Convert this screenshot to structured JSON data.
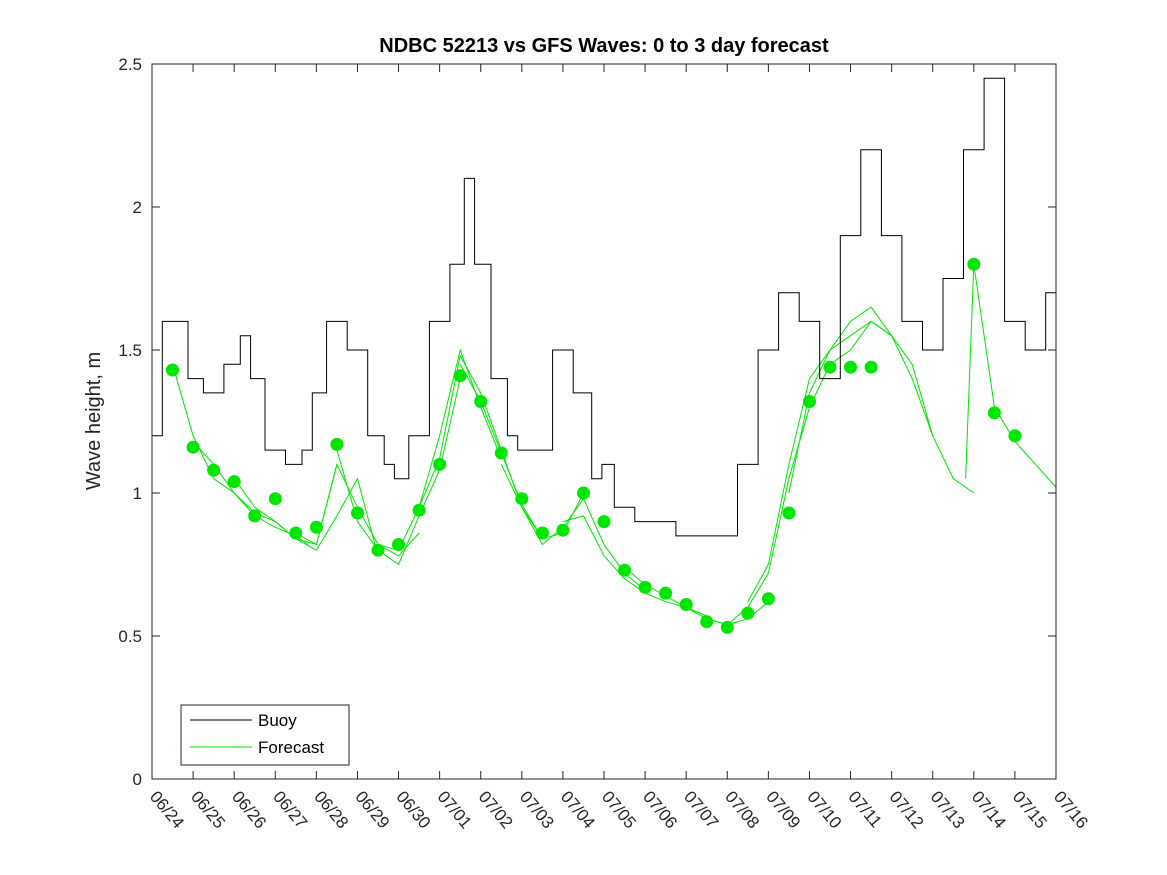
{
  "chart_data": {
    "type": "line",
    "title": "NDBC 52213 vs GFS Waves: 0 to 3 day forecast",
    "xlabel": "",
    "ylabel": "Wave height, m",
    "x_ticks": [
      "06/24",
      "06/25",
      "06/26",
      "06/27",
      "06/28",
      "06/29",
      "06/30",
      "07/01",
      "07/02",
      "07/03",
      "07/04",
      "07/05",
      "07/06",
      "07/07",
      "07/08",
      "07/09",
      "07/10",
      "07/11",
      "07/12",
      "07/13",
      "07/14",
      "07/15",
      "07/16"
    ],
    "y_ticks": [
      "0",
      "0.5",
      "1",
      "1.5",
      "2",
      "2.5"
    ],
    "xlim": [
      "06/24",
      "07/16"
    ],
    "ylim": [
      0,
      2.5
    ],
    "grid": false,
    "legend": {
      "position": "bottom-left",
      "entries": [
        "Buoy",
        "Forecast"
      ]
    },
    "colors": {
      "buoy": "#000000",
      "forecast": "#00e600"
    },
    "buoy": {
      "name": "Buoy",
      "color": "#000000",
      "t": [
        0,
        0.5,
        0.75,
        1,
        1.5,
        2,
        2.3,
        2.5,
        3,
        3.5,
        3.8,
        4,
        4.5,
        5,
        5.5,
        5.8,
        6,
        6.5,
        7,
        7.5,
        7.7,
        8,
        8.5,
        8.8,
        9,
        9.5,
        10,
        10.5,
        10.9,
        11,
        11.5,
        12,
        12.5,
        13,
        13.5,
        14,
        14.5,
        15,
        15.5,
        16,
        16.5,
        17,
        17.5,
        18,
        18.5,
        19,
        19.5,
        20,
        20.5,
        21,
        21.5,
        22
      ],
      "y": [
        1.2,
        1.6,
        1.6,
        1.4,
        1.35,
        1.45,
        1.55,
        1.4,
        1.15,
        1.1,
        1.15,
        1.35,
        1.6,
        1.5,
        1.2,
        1.1,
        1.05,
        1.2,
        1.6,
        1.8,
        2.1,
        1.8,
        1.4,
        1.2,
        1.15,
        1.15,
        1.5,
        1.35,
        1.05,
        1.1,
        0.95,
        0.9,
        0.9,
        0.85,
        0.85,
        0.85,
        1.1,
        1.5,
        1.7,
        1.6,
        1.4,
        1.9,
        2.2,
        1.9,
        1.6,
        1.5,
        1.75,
        2.2,
        2.45,
        1.6,
        1.5,
        1.7
      ]
    },
    "forecast_dots": {
      "name": "Forecast",
      "color": "#00e600",
      "t": [
        0.5,
        1,
        1.5,
        2,
        2.5,
        3,
        3.5,
        4,
        4.5,
        5,
        5.5,
        6,
        6.5,
        7,
        7.5,
        8,
        8.5,
        9,
        9.5,
        10,
        10.5,
        11,
        11.5,
        12,
        12.5,
        13,
        13.5,
        14,
        14.5,
        15,
        15.5,
        16,
        16.5,
        17,
        17.5,
        20,
        20.5,
        21
      ],
      "y": [
        1.43,
        1.16,
        1.08,
        1.04,
        0.92,
        0.98,
        0.86,
        0.88,
        1.17,
        0.93,
        0.8,
        0.82,
        0.94,
        1.1,
        1.41,
        1.32,
        1.14,
        0.98,
        0.86,
        0.87,
        1.0,
        0.9,
        0.73,
        0.67,
        0.65,
        0.61,
        0.55,
        0.53,
        0.58,
        0.63,
        0.93,
        1.32,
        1.44,
        1.44,
        1.44,
        1.8,
        1.28,
        1.2
      ]
    },
    "forecast_runs": [
      {
        "t": [
          0.5,
          1,
          1.5,
          2,
          2.5,
          3,
          3.5,
          3.8
        ],
        "y": [
          1.45,
          1.2,
          1.05,
          1.0,
          0.92,
          0.88,
          0.85,
          0.82
        ]
      },
      {
        "t": [
          1,
          1.5,
          2,
          2.5,
          3,
          3.5,
          4,
          4.5
        ],
        "y": [
          1.18,
          1.1,
          1.0,
          0.93,
          0.9,
          0.84,
          0.82,
          1.1
        ]
      },
      {
        "t": [
          2,
          2.5,
          3,
          3.5,
          4,
          4.5,
          5,
          5.5
        ],
        "y": [
          1.05,
          0.95,
          0.9,
          0.84,
          0.8,
          0.92,
          1.05,
          0.78
        ]
      },
      {
        "t": [
          3.5,
          4,
          4.5,
          5,
          5.5,
          6,
          6.5
        ],
        "y": [
          0.86,
          0.82,
          1.1,
          0.95,
          0.82,
          0.78,
          0.86
        ]
      },
      {
        "t": [
          4.5,
          5,
          5.5,
          6,
          6.5,
          7,
          7.5
        ],
        "y": [
          1.15,
          0.9,
          0.8,
          0.75,
          0.92,
          1.08,
          1.4
        ]
      },
      {
        "t": [
          5.5,
          6,
          6.5,
          7,
          7.5,
          8,
          8.5
        ],
        "y": [
          0.82,
          0.8,
          0.95,
          1.2,
          1.5,
          1.3,
          1.12
        ]
      },
      {
        "t": [
          6.5,
          7,
          7.5,
          8,
          8.5,
          9,
          9.5
        ],
        "y": [
          0.95,
          1.12,
          1.48,
          1.35,
          1.15,
          0.95,
          0.84
        ]
      },
      {
        "t": [
          7.5,
          8,
          8.5,
          9,
          9.5,
          10,
          10.5
        ],
        "y": [
          1.45,
          1.32,
          1.14,
          0.96,
          0.84,
          0.86,
          1.0
        ]
      },
      {
        "t": [
          8.5,
          9,
          9.5,
          10,
          10.5,
          11,
          11.5,
          12
        ],
        "y": [
          1.1,
          0.95,
          0.82,
          0.88,
          0.98,
          0.82,
          0.72,
          0.66
        ]
      },
      {
        "t": [
          10,
          10.5,
          11,
          11.5,
          12,
          12.5,
          13,
          13.5
        ],
        "y": [
          0.9,
          0.92,
          0.78,
          0.7,
          0.65,
          0.62,
          0.6,
          0.57
        ]
      },
      {
        "t": [
          11.5,
          12,
          12.5,
          13,
          13.5,
          14,
          14.5,
          15
        ],
        "y": [
          0.74,
          0.68,
          0.64,
          0.6,
          0.56,
          0.54,
          0.56,
          0.62
        ]
      },
      {
        "t": [
          13,
          13.5,
          14,
          14.5,
          15,
          15.5,
          16,
          16.5
        ],
        "y": [
          0.6,
          0.56,
          0.54,
          0.6,
          0.72,
          1.05,
          1.3,
          1.45
        ]
      },
      {
        "t": [
          14.5,
          15,
          15.5,
          16,
          16.5,
          17,
          17.5,
          18
        ],
        "y": [
          0.62,
          0.75,
          1.1,
          1.4,
          1.5,
          1.55,
          1.6,
          1.55
        ]
      },
      {
        "t": [
          15.5,
          16,
          16.5,
          17,
          17.5,
          18,
          18.5,
          19
        ],
        "y": [
          1.0,
          1.35,
          1.5,
          1.6,
          1.65,
          1.55,
          1.4,
          1.2
        ]
      },
      {
        "t": [
          16.5,
          17,
          17.5,
          18,
          18.5,
          19,
          19.5,
          20
        ],
        "y": [
          1.45,
          1.5,
          1.6,
          1.55,
          1.45,
          1.2,
          1.05,
          1.0
        ]
      },
      {
        "t": [
          19.8,
          20,
          20.5,
          21,
          21.5,
          22
        ],
        "y": [
          1.05,
          1.8,
          1.3,
          1.18,
          1.1,
          1.02
        ]
      }
    ]
  }
}
